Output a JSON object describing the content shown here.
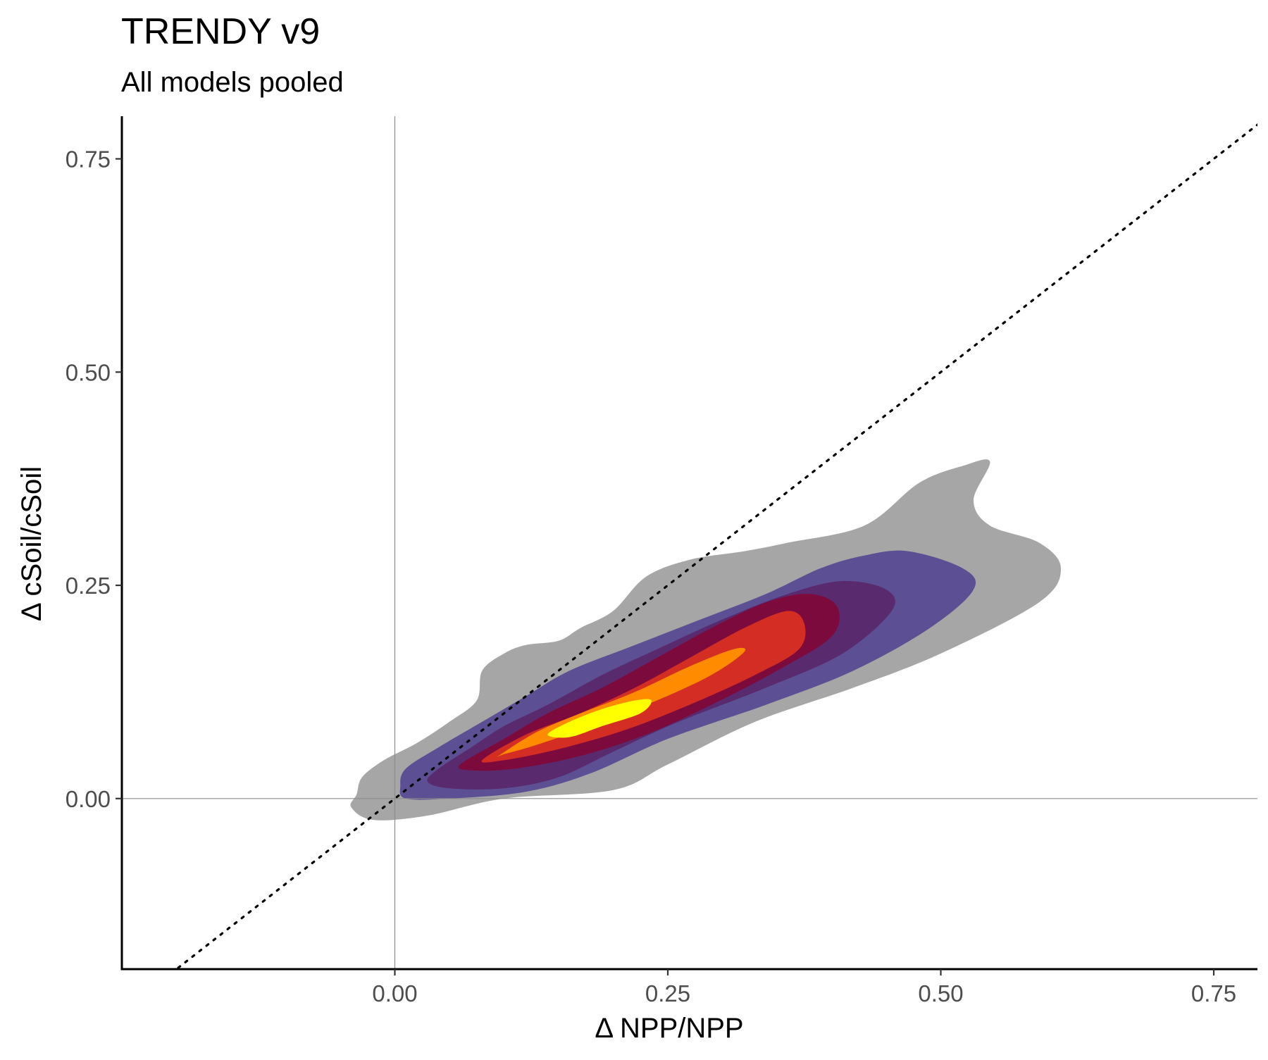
{
  "chart_data": {
    "type": "density-contour",
    "title": "TRENDY v9",
    "subtitle": "All models pooled",
    "xlabel": "Δ NPP/NPP",
    "ylabel": "Δ cSoil/cSoil",
    "xlim": [
      -0.25,
      0.79
    ],
    "ylim": [
      -0.2,
      0.8
    ],
    "x_ticks": [
      "0.00",
      "0.25",
      "0.50",
      "0.75"
    ],
    "x_tick_values": [
      0,
      0.25,
      0.5,
      0.75
    ],
    "y_ticks": [
      "0.00",
      "0.25",
      "0.50",
      "0.75"
    ],
    "y_tick_values": [
      0,
      0.25,
      0.5,
      0.75
    ],
    "reference_lines": {
      "vertical_x": 0,
      "horizontal_y": 0,
      "identity_line": "1:1 dotted"
    },
    "grid": false,
    "legend": "none",
    "density_levels": [
      {
        "level": 1,
        "color": "#a6a6a6",
        "polygon": [
          [
            -0.035,
            0.005
          ],
          [
            -0.03,
            0.025
          ],
          [
            -0.01,
            0.045
          ],
          [
            0.02,
            0.065
          ],
          [
            0.05,
            0.09
          ],
          [
            0.075,
            0.115
          ],
          [
            0.08,
            0.15
          ],
          [
            0.1,
            0.17
          ],
          [
            0.12,
            0.18
          ],
          [
            0.15,
            0.185
          ],
          [
            0.17,
            0.2
          ],
          [
            0.2,
            0.22
          ],
          [
            0.23,
            0.26
          ],
          [
            0.27,
            0.28
          ],
          [
            0.32,
            0.29
          ],
          [
            0.36,
            0.3
          ],
          [
            0.43,
            0.32
          ],
          [
            0.48,
            0.37
          ],
          [
            0.52,
            0.39
          ],
          [
            0.545,
            0.395
          ],
          [
            0.53,
            0.35
          ],
          [
            0.545,
            0.32
          ],
          [
            0.59,
            0.3
          ],
          [
            0.61,
            0.27
          ],
          [
            0.59,
            0.23
          ],
          [
            0.5,
            0.17
          ],
          [
            0.42,
            0.13
          ],
          [
            0.33,
            0.09
          ],
          [
            0.25,
            0.04
          ],
          [
            0.2,
            0.01
          ],
          [
            0.1,
            0.0
          ],
          [
            0.03,
            -0.02
          ],
          [
            -0.02,
            -0.025
          ],
          [
            -0.04,
            -0.01
          ]
        ]
      },
      {
        "level": 2,
        "color": "#5c4f93",
        "polygon": [
          [
            0.005,
            0.015
          ],
          [
            0.01,
            0.035
          ],
          [
            0.04,
            0.06
          ],
          [
            0.08,
            0.09
          ],
          [
            0.12,
            0.12
          ],
          [
            0.16,
            0.15
          ],
          [
            0.22,
            0.18
          ],
          [
            0.28,
            0.21
          ],
          [
            0.34,
            0.24
          ],
          [
            0.39,
            0.27
          ],
          [
            0.43,
            0.285
          ],
          [
            0.47,
            0.29
          ],
          [
            0.52,
            0.27
          ],
          [
            0.53,
            0.245
          ],
          [
            0.49,
            0.2
          ],
          [
            0.42,
            0.15
          ],
          [
            0.34,
            0.11
          ],
          [
            0.25,
            0.07
          ],
          [
            0.18,
            0.03
          ],
          [
            0.12,
            0.008
          ],
          [
            0.05,
            0.0
          ],
          [
            0.01,
            0.0
          ]
        ]
      },
      {
        "level": 3,
        "color": "#5a2a6e",
        "polygon": [
          [
            0.03,
            0.02
          ],
          [
            0.04,
            0.035
          ],
          [
            0.07,
            0.06
          ],
          [
            0.1,
            0.085
          ],
          [
            0.14,
            0.11
          ],
          [
            0.19,
            0.145
          ],
          [
            0.24,
            0.175
          ],
          [
            0.3,
            0.21
          ],
          [
            0.36,
            0.24
          ],
          [
            0.41,
            0.255
          ],
          [
            0.45,
            0.245
          ],
          [
            0.455,
            0.22
          ],
          [
            0.41,
            0.17
          ],
          [
            0.34,
            0.13
          ],
          [
            0.26,
            0.09
          ],
          [
            0.2,
            0.055
          ],
          [
            0.15,
            0.025
          ],
          [
            0.1,
            0.012
          ],
          [
            0.05,
            0.012
          ]
        ]
      },
      {
        "level": 4,
        "color": "#7d0a3c",
        "polygon": [
          [
            0.06,
            0.04
          ],
          [
            0.1,
            0.07
          ],
          [
            0.14,
            0.1
          ],
          [
            0.19,
            0.13
          ],
          [
            0.24,
            0.165
          ],
          [
            0.29,
            0.2
          ],
          [
            0.34,
            0.23
          ],
          [
            0.38,
            0.24
          ],
          [
            0.405,
            0.225
          ],
          [
            0.4,
            0.19
          ],
          [
            0.35,
            0.15
          ],
          [
            0.29,
            0.11
          ],
          [
            0.23,
            0.075
          ],
          [
            0.17,
            0.05
          ],
          [
            0.11,
            0.035
          ],
          [
            0.07,
            0.033
          ]
        ]
      },
      {
        "level": 5,
        "color": "#d42e24",
        "polygon": [
          [
            0.08,
            0.045
          ],
          [
            0.12,
            0.075
          ],
          [
            0.17,
            0.1
          ],
          [
            0.22,
            0.13
          ],
          [
            0.27,
            0.165
          ],
          [
            0.32,
            0.2
          ],
          [
            0.36,
            0.22
          ],
          [
            0.375,
            0.205
          ],
          [
            0.37,
            0.175
          ],
          [
            0.33,
            0.145
          ],
          [
            0.27,
            0.11
          ],
          [
            0.21,
            0.08
          ],
          [
            0.15,
            0.058
          ],
          [
            0.1,
            0.045
          ]
        ]
      },
      {
        "level": 6,
        "color": "#ff8c00",
        "polygon": [
          [
            0.095,
            0.05
          ],
          [
            0.13,
            0.078
          ],
          [
            0.17,
            0.1
          ],
          [
            0.22,
            0.125
          ],
          [
            0.27,
            0.155
          ],
          [
            0.31,
            0.175
          ],
          [
            0.32,
            0.172
          ],
          [
            0.29,
            0.145
          ],
          [
            0.24,
            0.115
          ],
          [
            0.18,
            0.085
          ],
          [
            0.13,
            0.063
          ],
          [
            0.1,
            0.052
          ]
        ]
      },
      {
        "level": 7,
        "color": "#ffff00",
        "polygon": [
          [
            0.14,
            0.075
          ],
          [
            0.16,
            0.09
          ],
          [
            0.19,
            0.105
          ],
          [
            0.22,
            0.115
          ],
          [
            0.235,
            0.115
          ],
          [
            0.225,
            0.1
          ],
          [
            0.19,
            0.085
          ],
          [
            0.16,
            0.072
          ]
        ]
      }
    ]
  }
}
